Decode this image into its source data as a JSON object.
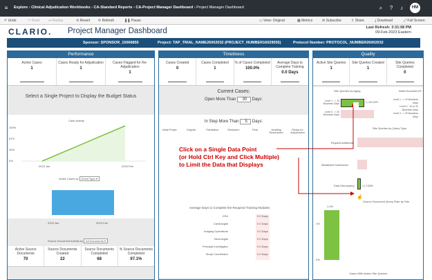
{
  "breadcrumb": [
    "Explore",
    "Clinical Adjudication Workbooks",
    "CA-Standard Reports",
    "CA-Project Manager Dashboard",
    "Project Manager Dashboard"
  ],
  "user_initials": "HM",
  "toolbar": {
    "undo": "Undo",
    "redo": "Redo",
    "replay": "Replay",
    "revert": "Revert",
    "refresh": "Refresh",
    "pause": "Pause",
    "view": "View: Original",
    "metrics": "Metrics",
    "subscribe": "Subscribe",
    "share": "Share",
    "download": "Download",
    "fullscreen": "Full Screen"
  },
  "header": {
    "logo": "CLARIO.",
    "title": "Project Manager Dashboard",
    "last_refresh_label": "Last Refresh: 3:31:08 PM",
    "last_refresh_date": "09-Feb-2023 Eastern"
  },
  "info": {
    "sponsor": "Sponsor: SPONSOR_15066855",
    "project": "Project: TAP_TRIAL_NAME26002032 (PROJECT_NUMBER16029555)",
    "protocol": "Protocol Number: PROTOCOL_NUMBER26002032"
  },
  "performance": {
    "title": "Performance",
    "kpis": [
      {
        "label": "Active Cases",
        "value": "1"
      },
      {
        "label": "Cases Ready for Adjudication",
        "value": "1"
      },
      {
        "label": "Cases Flagged for Re-Adjudication",
        "value": "1"
      }
    ],
    "select_text": "Select a Single Project to Display the Budget Status",
    "case_activity_title": "Case Activity",
    "case_activity_y": [
      "100%",
      "67%",
      "33%",
      "0%"
    ],
    "case_activity_x": [
      "2023 Jan",
      "2023 Feb"
    ],
    "active_cases_label": "Active Cases by",
    "active_cases_select": "Event Type",
    "active_cases_x": [
      "2023 Jan",
      "2023 Feb"
    ],
    "source_docs_label": "Source Document Activity by",
    "source_docs_select": "All Documents",
    "bottom_kpis": [
      {
        "label": "Active Source Documents",
        "value": "70"
      },
      {
        "label": "Source Documents Created",
        "value": "22"
      },
      {
        "label": "Source Documents Completed",
        "value": "68"
      },
      {
        "label": "% Source Documents Completed",
        "value": "97.1%"
      }
    ]
  },
  "timeliness": {
    "title": "Timeliness",
    "kpis": [
      {
        "label": "Cases Created",
        "value": "0"
      },
      {
        "label": "Cases Completed",
        "value": "1"
      },
      {
        "label": "% of Cases Completed",
        "value": "100.0%"
      },
      {
        "label": "Average Days to Complete Training",
        "value": "0.0 Days"
      }
    ],
    "current_cases": "Current Cases:",
    "open_more": "Open More Than",
    "open_days": "30",
    "days": "Days:",
    "in_step": "In Step More Than",
    "step_days": "5",
    "steps": [
      "Initial Phase",
      "Original",
      "Translation",
      "Redaction",
      "Final",
      "Awaiting Resumption",
      "Ready for Adjudication"
    ],
    "training_title": "Average Days to Complete the Required Training Modules",
    "training": [
      {
        "module": "CRA",
        "days": "0.0 Days"
      },
      {
        "module": "Cardiologist",
        "days": "0.0 Days"
      },
      {
        "module": "Imaging Operations",
        "days": "0.0 Days"
      },
      {
        "module": "Neurologist",
        "days": "0.0 Days"
      },
      {
        "module": "Principal Investigator",
        "days": "0.0 Days"
      },
      {
        "module": "Study Coordinator",
        "days": "0.0 Days"
      }
    ]
  },
  "quality": {
    "title": "Quality",
    "kpis": [
      {
        "label": "Active Site Queries",
        "value": "1"
      },
      {
        "label": "Site Queries Created",
        "value": "1"
      },
      {
        "label": "Site Queries Completed",
        "value": "0"
      }
    ],
    "aging_title": "Site Queries by Aging",
    "initial_doc": "Initial Document R",
    "aging_rows": [
      {
        "label": "Level 1 : < 10 Business Days",
        "value": "1 | 50.00%"
      },
      {
        "label": "Level 3 : > 20 Business Days",
        "value": ""
      }
    ],
    "initial_rows": [
      "Level 1 : < 10 Business Days",
      "Level 2 : 10 to 20 Business Days",
      "Level 3 : > 20 Business Days"
    ],
    "type_title": "Site Queries by Query Type",
    "type_rows": [
      {
        "label": "Request Additional",
        "value": ""
      },
      {
        "label": "Mislabeled Submission",
        "value": ""
      },
      {
        "label": "Data Discrepancy",
        "value": "1 | 2.58%"
      }
    ],
    "rate_title": "Source Document Query Rate by Site",
    "rate_y": [
      "1%",
      "0%"
    ],
    "rate_bar_label": "1.4%",
    "rate_bar_frac": 0.9,
    "bottom_title": "Cases With Active Site Queries"
  },
  "callout": [
    "Click on a Single Data Point",
    "(or Hold Ctrl Key and Click Multiple)",
    "to Limit the Data that Displays"
  ],
  "colors": {
    "topbar": "#2b2f36",
    "panel": "#2b6a9a",
    "infobar": "#1b4f7a",
    "green": "#7dc242",
    "blue": "#4aa8e0",
    "callout": "#cc0000",
    "pink": "#f2d5d5"
  }
}
